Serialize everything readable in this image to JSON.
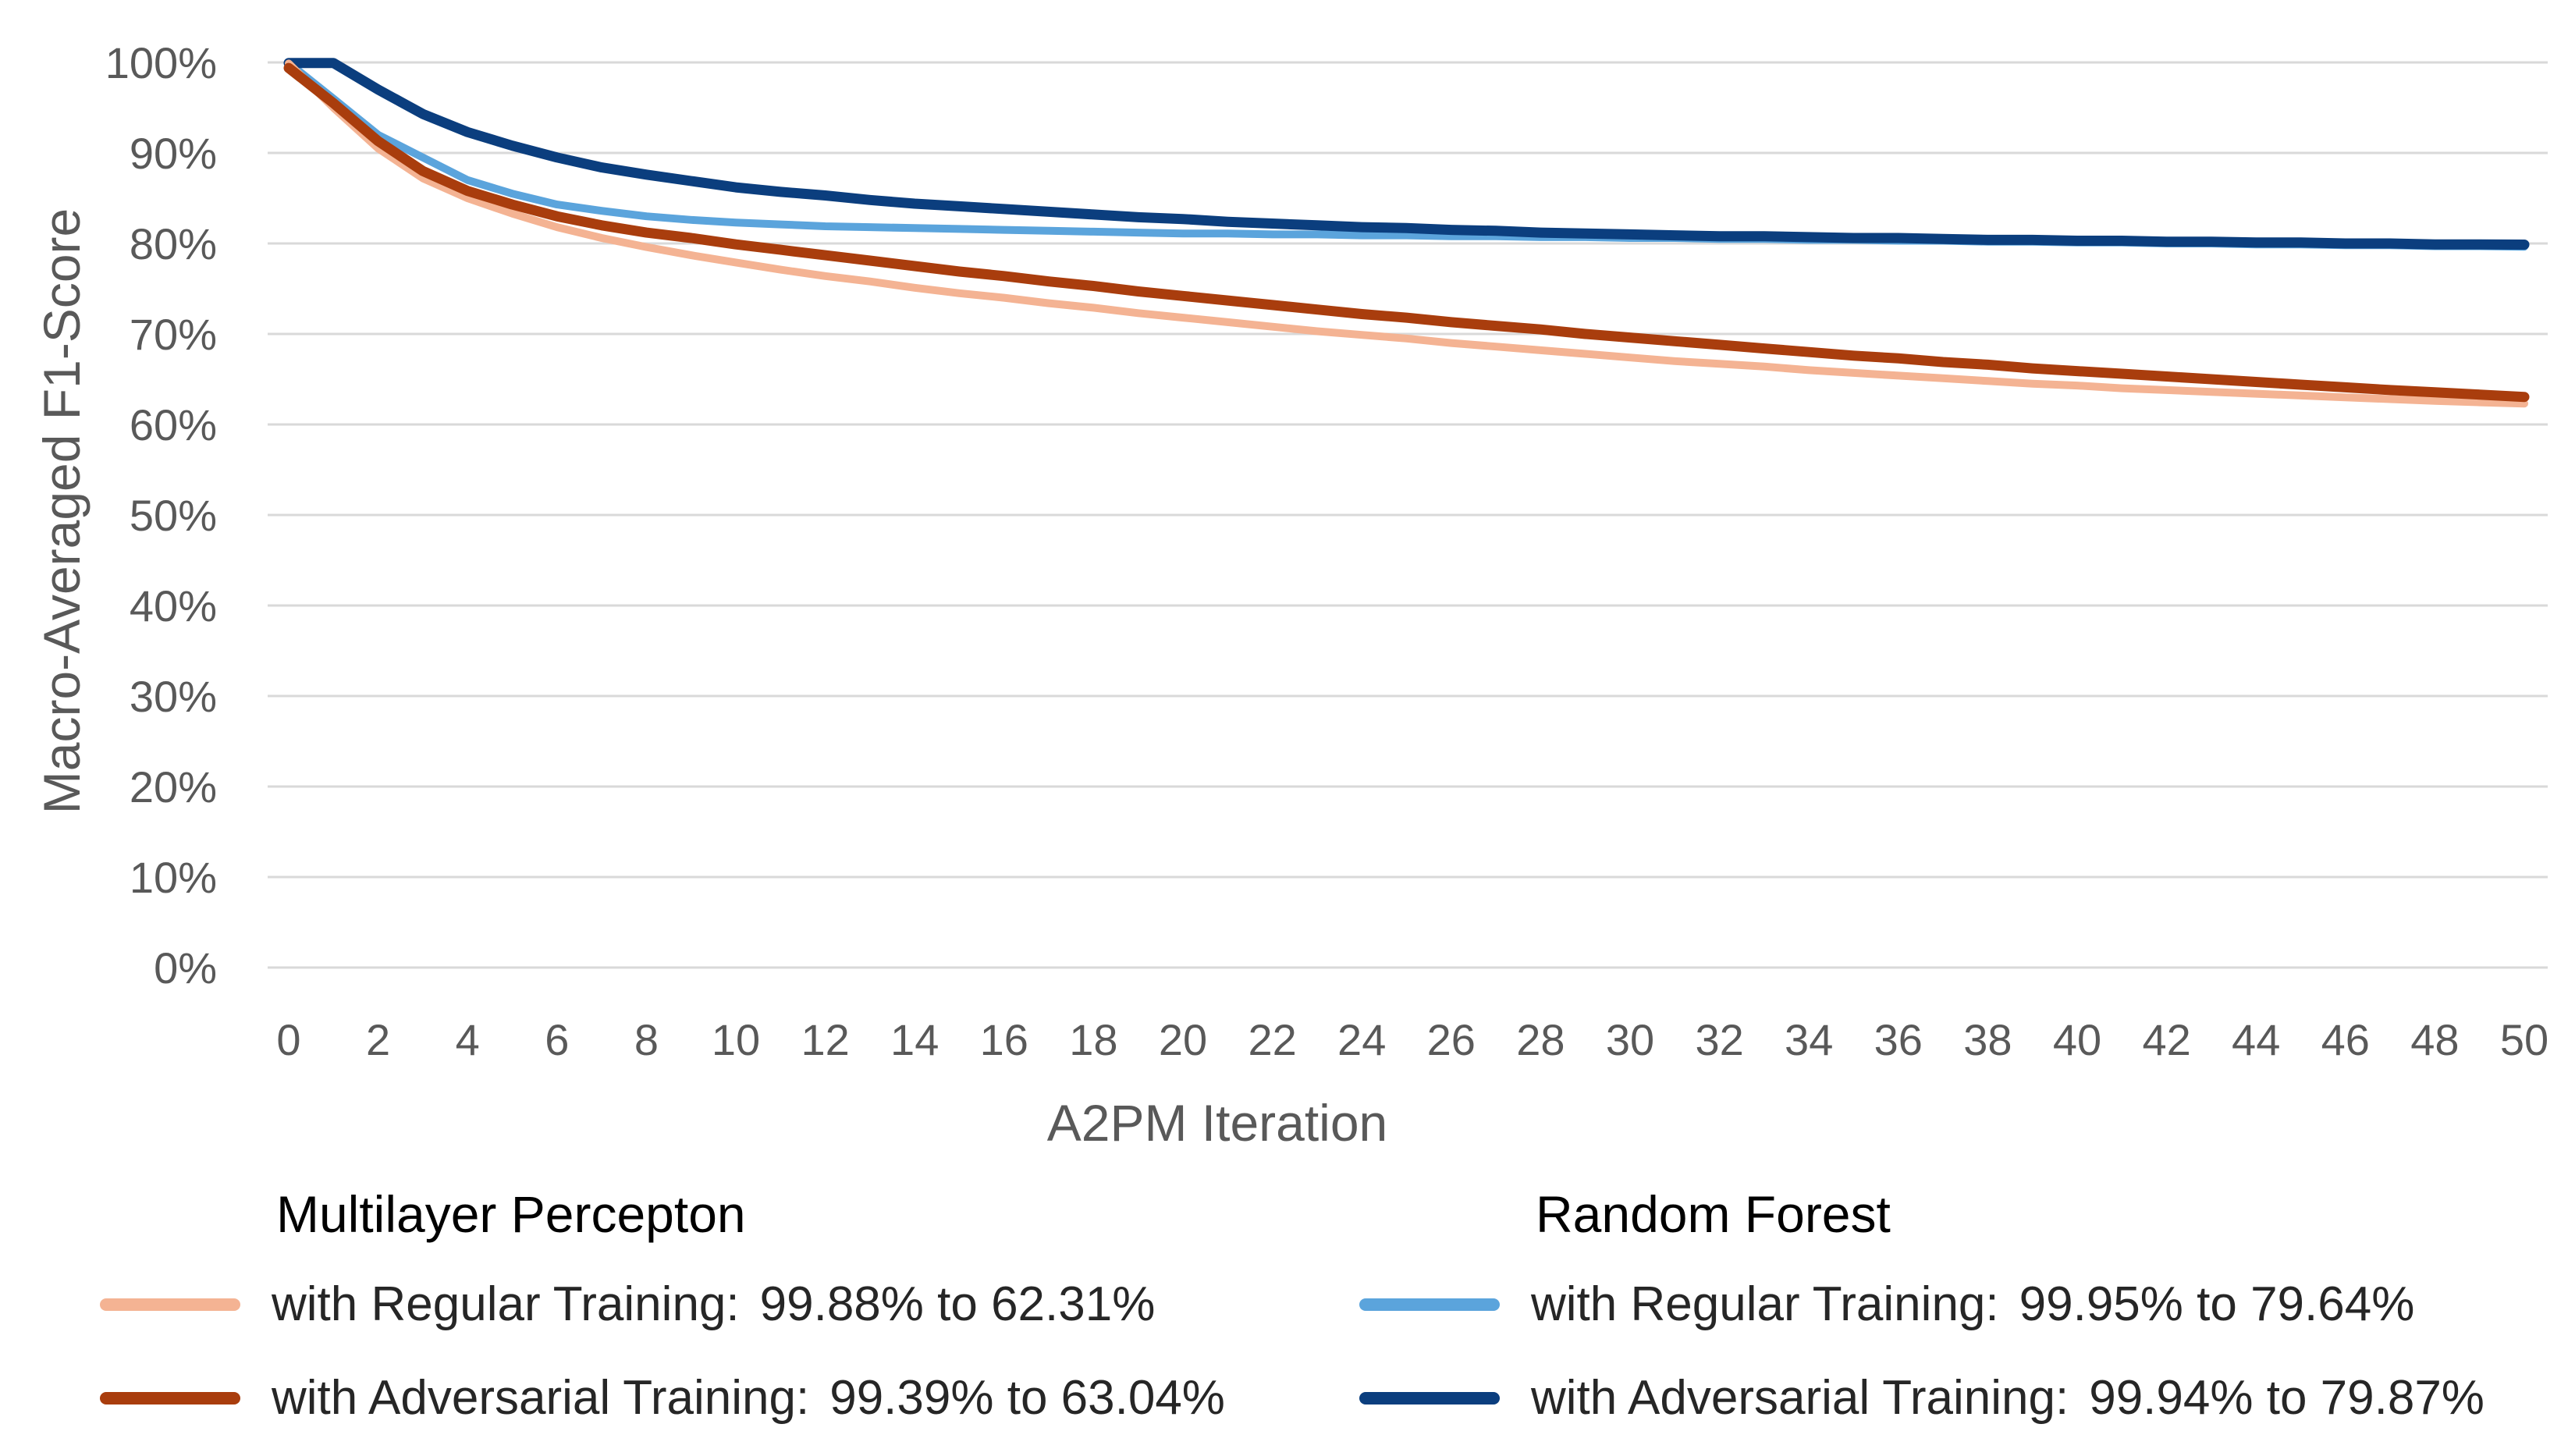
{
  "chart_data": {
    "type": "line",
    "xlabel": "A2PM Iteration",
    "ylabel": "Macro-Averaged F1-Score",
    "xlim": [
      0,
      50
    ],
    "ylim": [
      0,
      100
    ],
    "grid": true,
    "x_tick_labels": [
      "0",
      "2",
      "4",
      "6",
      "8",
      "10",
      "12",
      "14",
      "16",
      "18",
      "20",
      "22",
      "24",
      "26",
      "28",
      "30",
      "32",
      "34",
      "36",
      "38",
      "40",
      "42",
      "44",
      "46",
      "48",
      "50"
    ],
    "y_tick_labels": [
      "0%",
      "10%",
      "20%",
      "30%",
      "40%",
      "50%",
      "60%",
      "70%",
      "80%",
      "90%",
      "100%"
    ],
    "x": [
      0,
      1,
      2,
      3,
      4,
      5,
      6,
      7,
      8,
      9,
      10,
      11,
      12,
      13,
      14,
      15,
      16,
      17,
      18,
      19,
      20,
      21,
      22,
      23,
      24,
      25,
      26,
      27,
      28,
      29,
      30,
      31,
      32,
      33,
      34,
      35,
      36,
      37,
      38,
      39,
      40,
      41,
      42,
      43,
      44,
      45,
      46,
      47,
      48,
      49,
      50
    ],
    "series": [
      {
        "name": "Random Forest with Regular Training",
        "group": "Random Forest",
        "color": "#5BA4DC",
        "values": [
          99.95,
          96.0,
          92.0,
          89.5,
          87.0,
          85.5,
          84.3,
          83.6,
          83.0,
          82.6,
          82.3,
          82.1,
          81.9,
          81.8,
          81.7,
          81.6,
          81.5,
          81.4,
          81.3,
          81.2,
          81.1,
          81.1,
          81.0,
          81.0,
          80.9,
          80.9,
          80.8,
          80.8,
          80.7,
          80.7,
          80.6,
          80.6,
          80.5,
          80.5,
          80.4,
          80.4,
          80.3,
          80.3,
          80.2,
          80.2,
          80.1,
          80.1,
          80.0,
          80.0,
          79.9,
          79.9,
          79.8,
          79.8,
          79.7,
          79.7,
          79.64
        ]
      },
      {
        "name": "Random Forest with Adversarial Training",
        "group": "Random Forest",
        "color": "#0B3E7E",
        "values": [
          99.94,
          99.94,
          97.0,
          94.3,
          92.3,
          90.8,
          89.5,
          88.4,
          87.6,
          86.9,
          86.2,
          85.7,
          85.3,
          84.8,
          84.4,
          84.1,
          83.8,
          83.5,
          83.2,
          82.9,
          82.7,
          82.4,
          82.2,
          82.0,
          81.8,
          81.7,
          81.5,
          81.4,
          81.2,
          81.1,
          81.0,
          80.9,
          80.8,
          80.8,
          80.7,
          80.6,
          80.6,
          80.5,
          80.4,
          80.4,
          80.3,
          80.3,
          80.2,
          80.2,
          80.1,
          80.1,
          80.0,
          80.0,
          79.9,
          79.9,
          79.87
        ]
      },
      {
        "name": "Multilayer Percepton with Regular Training",
        "group": "Multilayer Percepton",
        "color": "#F4B393",
        "values": [
          99.88,
          95.0,
          90.5,
          87.2,
          85.0,
          83.3,
          81.8,
          80.6,
          79.6,
          78.7,
          77.9,
          77.1,
          76.4,
          75.8,
          75.1,
          74.5,
          74.0,
          73.4,
          72.9,
          72.3,
          71.8,
          71.3,
          70.8,
          70.3,
          69.9,
          69.5,
          69.0,
          68.6,
          68.2,
          67.8,
          67.4,
          67.0,
          66.7,
          66.4,
          66.0,
          65.7,
          65.4,
          65.1,
          64.8,
          64.5,
          64.3,
          64.0,
          63.8,
          63.6,
          63.4,
          63.2,
          63.0,
          62.8,
          62.6,
          62.45,
          62.31
        ]
      },
      {
        "name": "Multilayer Percepton with Adversarial Training",
        "group": "Multilayer Percepton",
        "color": "#A93D0D",
        "values": [
          99.39,
          95.5,
          91.3,
          88.0,
          85.8,
          84.3,
          83.0,
          82.0,
          81.2,
          80.6,
          79.9,
          79.3,
          78.7,
          78.1,
          77.5,
          76.9,
          76.4,
          75.8,
          75.3,
          74.7,
          74.2,
          73.7,
          73.2,
          72.7,
          72.2,
          71.8,
          71.3,
          70.9,
          70.5,
          70.0,
          69.6,
          69.2,
          68.8,
          68.4,
          68.0,
          67.6,
          67.3,
          66.9,
          66.6,
          66.2,
          65.9,
          65.6,
          65.3,
          65.0,
          64.7,
          64.4,
          64.1,
          63.8,
          63.55,
          63.3,
          63.04
        ]
      }
    ]
  },
  "legend": {
    "mlp": {
      "title": "Multilayer Percepton",
      "regular": {
        "label": "with Regular Training:",
        "range": "99.88% to 62.31%",
        "color": "#F4B393"
      },
      "adversarial": {
        "label": "with Adversarial Training:",
        "range": "99.39% to 63.04%",
        "color": "#A93D0D"
      }
    },
    "rf": {
      "title": "Random Forest",
      "regular": {
        "label": "with Regular Training:",
        "range": "99.95% to 79.64%",
        "color": "#5BA4DC"
      },
      "adversarial": {
        "label": "with Adversarial Training:",
        "range": "99.94% to 79.87%",
        "color": "#0B3E7E"
      }
    }
  }
}
